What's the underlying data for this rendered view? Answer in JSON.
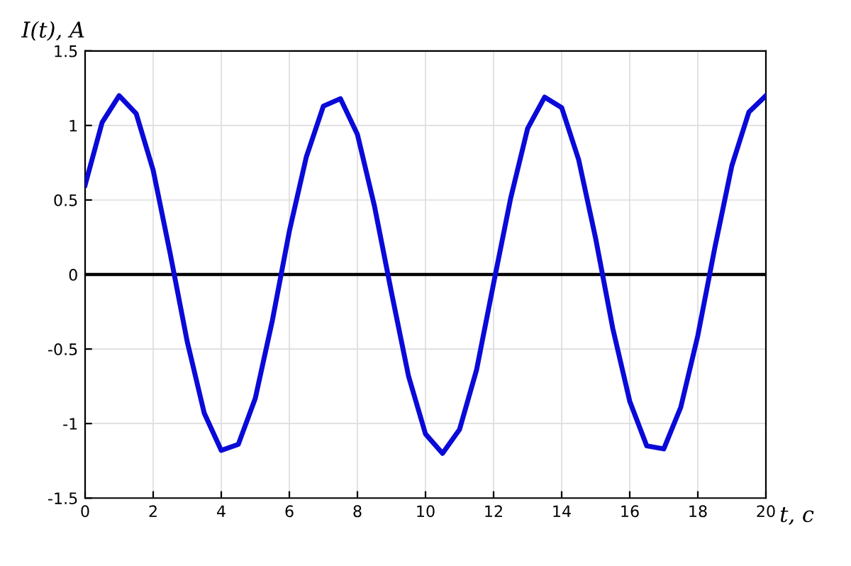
{
  "chart_data": {
    "type": "line",
    "xlabel": "t, c",
    "ylabel": "I(t), A",
    "x": [
      0,
      0.5,
      1,
      1.5,
      2,
      2.5,
      3,
      3.5,
      4,
      4.5,
      5,
      5.5,
      6,
      6.5,
      7,
      7.5,
      8,
      8.5,
      9,
      9.5,
      10,
      10.5,
      11,
      11.5,
      12,
      12.5,
      13,
      13.5,
      14,
      14.5,
      15,
      15.5,
      16,
      16.5,
      17,
      17.5,
      18,
      18.5,
      19,
      19.5,
      20
    ],
    "series": [
      {
        "color": "#0a0ad8",
        "values": [
          0.6,
          1.02,
          1.2,
          1.08,
          0.7,
          0.14,
          -0.45,
          -0.93,
          -1.18,
          -1.14,
          -0.83,
          -0.31,
          0.29,
          0.79,
          1.13,
          1.18,
          0.94,
          0.46,
          -0.12,
          -0.68,
          -1.07,
          -1.2,
          -1.04,
          -0.64,
          -0.06,
          0.51,
          0.98,
          1.19,
          1.12,
          0.77,
          0.24,
          -0.36,
          -0.85,
          -1.15,
          -1.17,
          -0.89,
          -0.41,
          0.18,
          0.73,
          1.09,
          1.2
        ]
      }
    ],
    "xlim": [
      0,
      20
    ],
    "xticks": [
      0,
      2,
      4,
      6,
      8,
      10,
      12,
      14,
      16,
      18,
      20
    ],
    "ylim": [
      -1.5,
      1.5
    ],
    "yticks": [
      -1.5,
      -1,
      -0.5,
      0,
      0.5,
      1,
      1.5
    ],
    "ref_lines": [
      {
        "axis": "y",
        "value": 0,
        "color": "#000000",
        "line_style": "solid"
      }
    ],
    "grid": true,
    "line_style": "solid",
    "marker": "none"
  }
}
